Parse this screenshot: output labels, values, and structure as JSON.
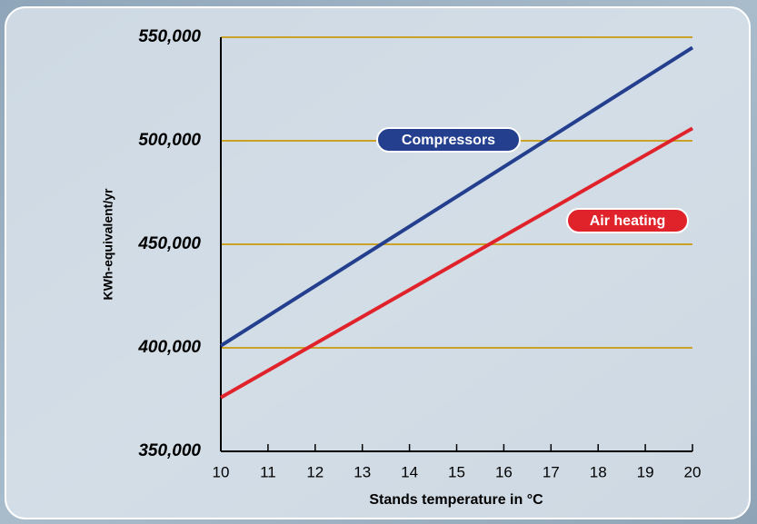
{
  "chart_data": {
    "type": "line",
    "x": [
      10,
      20
    ],
    "xlim": [
      10,
      20
    ],
    "xticks": [
      10,
      11,
      12,
      13,
      14,
      15,
      16,
      17,
      18,
      19,
      20
    ],
    "ylim": [
      350000,
      550000
    ],
    "yticks": [
      {
        "value": 350000,
        "label": "350,000"
      },
      {
        "value": 400000,
        "label": "400,000"
      },
      {
        "value": 450000,
        "label": "450,000"
      },
      {
        "value": 500000,
        "label": "500,000"
      },
      {
        "value": 550000,
        "label": "550,000"
      }
    ],
    "xlabel": "Stands temperature in °C",
    "ylabel": "KWh-equivalent/yr",
    "grid": true,
    "grid_color": "#c9a227",
    "series": [
      {
        "name": "Compressors",
        "color": "#233f8e",
        "values": [
          401000,
          545000
        ]
      },
      {
        "name": "Air heating",
        "color": "#e0232b",
        "values": [
          376000,
          506000
        ]
      }
    ]
  }
}
